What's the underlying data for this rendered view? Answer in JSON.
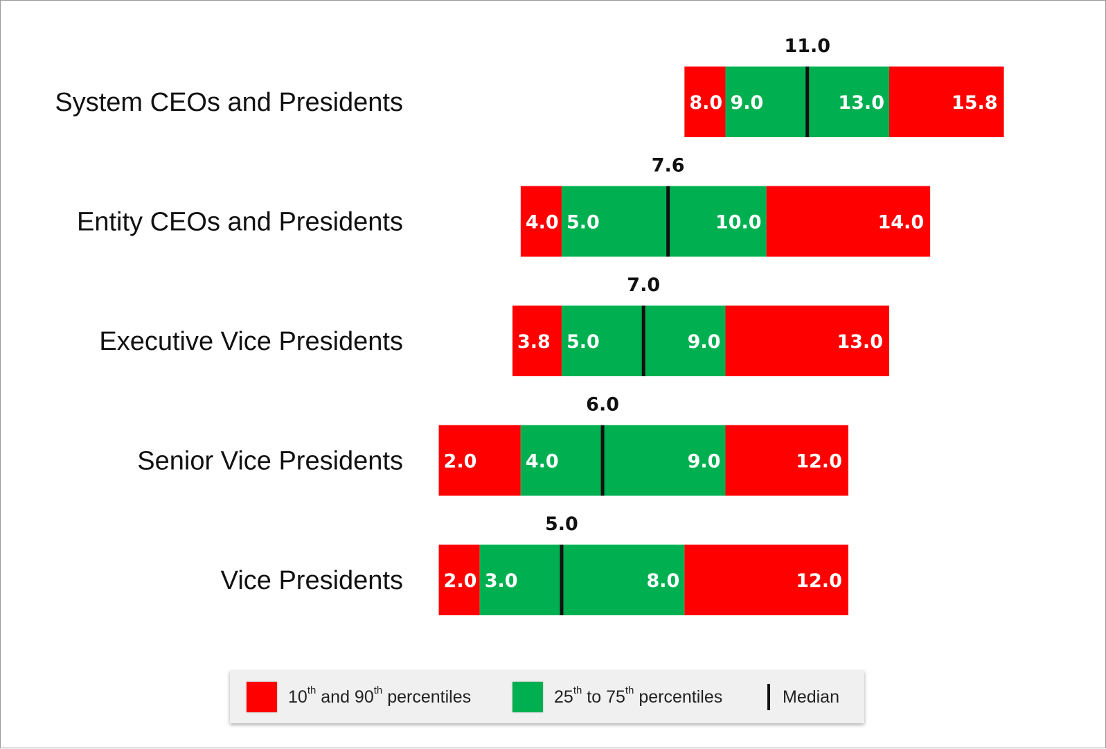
{
  "chart_data": {
    "type": "bar",
    "orientation": "horizontal",
    "categories": [
      "System CEOs and Presidents",
      "Entity CEOs and Presidents",
      "Executive Vice Presidents",
      "Senior Vice Presidents",
      "Vice Presidents"
    ],
    "p10": [
      8.0,
      4.0,
      3.8,
      2.0,
      2.0
    ],
    "p25": [
      9.0,
      5.0,
      5.0,
      4.0,
      3.0
    ],
    "median": [
      11.0,
      7.6,
      7.0,
      6.0,
      5.0
    ],
    "p75": [
      13.0,
      10.0,
      9.0,
      9.0,
      8.0
    ],
    "p90": [
      15.8,
      14.0,
      13.0,
      12.0,
      12.0
    ],
    "colors": {
      "outer": "#ff0000",
      "inner": "#00b050",
      "median": "#111111"
    },
    "legend": {
      "placement": "bottom",
      "items": [
        {
          "pre": "10",
          "sup1": "th",
          "mid": " and 90",
          "sup2": "th",
          "post": " percentiles",
          "color": "#ff0000"
        },
        {
          "pre": "25",
          "sup1": "th",
          "mid": " to 75",
          "sup2": "th",
          "post": " percentiles",
          "color": "#00b050"
        },
        {
          "label": "Median"
        }
      ]
    }
  }
}
